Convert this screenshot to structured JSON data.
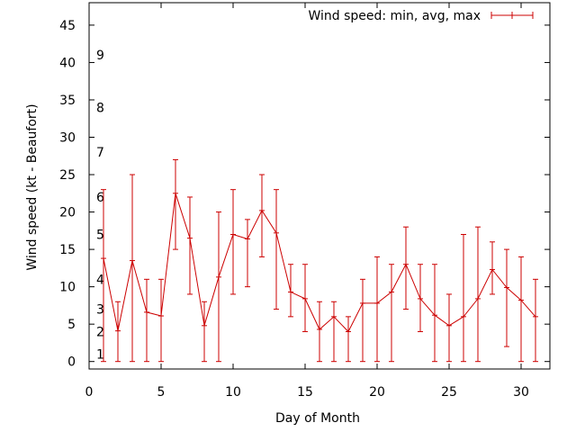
{
  "chart_data": {
    "type": "line",
    "xlabel": "Day of Month",
    "ylabel": "Wind speed (kt - Beaufort)",
    "xlim": [
      0,
      32
    ],
    "ylim": [
      -1,
      48
    ],
    "xticks": [
      0,
      5,
      10,
      15,
      20,
      25,
      30
    ],
    "yticks": [
      0,
      5,
      10,
      15,
      20,
      25,
      30,
      35,
      40,
      45
    ],
    "grid": false,
    "legend_position": "top-right",
    "beaufort_marks": [
      {
        "label": "1",
        "value": 1
      },
      {
        "label": "2",
        "value": 4
      },
      {
        "label": "3",
        "value": 7
      },
      {
        "label": "4",
        "value": 11
      },
      {
        "label": "5",
        "value": 17
      },
      {
        "label": "6",
        "value": 22
      },
      {
        "label": "7",
        "value": 28
      },
      {
        "label": "8",
        "value": 34
      },
      {
        "label": "9",
        "value": 41
      }
    ],
    "series": [
      {
        "name": "Wind speed: min, avg, max",
        "color": "#cc0000",
        "x": [
          1,
          2,
          3,
          4,
          5,
          6,
          7,
          8,
          9,
          10,
          11,
          12,
          13,
          14,
          15,
          16,
          17,
          18,
          19,
          20,
          21,
          22,
          23,
          24,
          25,
          26,
          27,
          28,
          29,
          30,
          31
        ],
        "min": [
          0,
          0,
          0,
          0,
          0,
          15,
          9,
          0,
          0,
          9,
          10,
          14,
          7,
          6,
          4,
          0,
          0,
          0,
          0,
          0,
          0,
          7,
          4,
          0,
          0,
          0,
          0,
          9,
          2,
          0,
          0
        ],
        "avg": [
          13.8,
          4.1,
          13.5,
          6.6,
          6.1,
          22.5,
          16.5,
          4.8,
          11.3,
          17.0,
          16.4,
          20.2,
          17.2,
          9.3,
          8.4,
          4.3,
          6.0,
          4.0,
          7.8,
          7.8,
          9.3,
          13.0,
          8.4,
          6.2,
          4.8,
          6.0,
          8.4,
          12.3,
          9.9,
          8.2,
          6.0
        ],
        "max": [
          23,
          8,
          25,
          11,
          11,
          27,
          22,
          8,
          20,
          23,
          19,
          25,
          23,
          13,
          13,
          8,
          8,
          6,
          11,
          14,
          13,
          18,
          13,
          13,
          9,
          17,
          18,
          16,
          15,
          14,
          11
        ]
      }
    ]
  }
}
